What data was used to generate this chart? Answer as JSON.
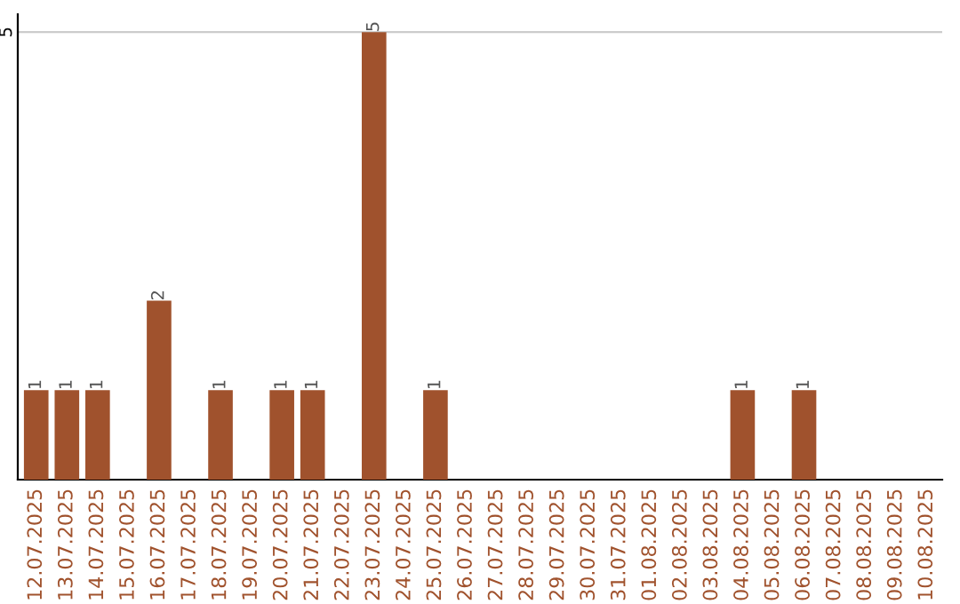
{
  "chart_data": {
    "type": "bar",
    "categories": [
      "12.07.2025",
      "13.07.2025",
      "14.07.2025",
      "15.07.2025",
      "16.07.2025",
      "17.07.2025",
      "18.07.2025",
      "19.07.2025",
      "20.07.2025",
      "21.07.2025",
      "22.07.2025",
      "23.07.2025",
      "24.07.2025",
      "25.07.2025",
      "26.07.2025",
      "27.07.2025",
      "28.07.2025",
      "29.07.2025",
      "30.07.2025",
      "31.07.2025",
      "01.08.2025",
      "02.08.2025",
      "03.08.2025",
      "04.08.2025",
      "05.08.2025",
      "06.08.2025",
      "07.08.2025",
      "08.08.2025",
      "09.08.2025",
      "10.08.2025"
    ],
    "values": [
      1,
      1,
      1,
      0,
      2,
      0,
      1,
      0,
      1,
      1,
      0,
      5,
      0,
      1,
      0,
      0,
      0,
      0,
      0,
      0,
      0,
      0,
      0,
      1,
      0,
      1,
      0,
      0,
      0,
      0
    ],
    "value_labels": [
      "1",
      "1",
      "1",
      null,
      "2",
      null,
      "1",
      null,
      "1",
      "1",
      null,
      "5",
      null,
      "1",
      null,
      null,
      null,
      null,
      null,
      null,
      null,
      null,
      null,
      "1",
      null,
      "1",
      null,
      null,
      null,
      null
    ],
    "color": "#a0522d",
    "ylim": [
      0,
      5.2
    ],
    "yticks": [
      5
    ],
    "grid": "y"
  }
}
